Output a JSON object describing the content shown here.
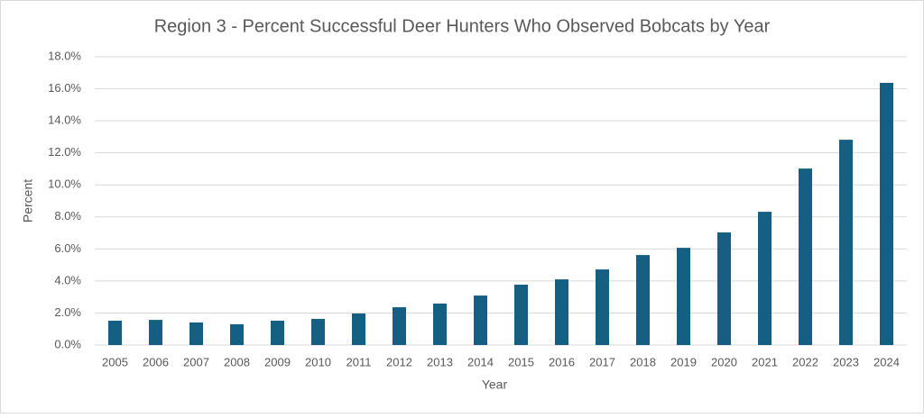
{
  "chart_data": {
    "type": "bar",
    "title": "Region 3 - Percent Successful Deer Hunters Who Observed Bobcats by Year",
    "x_label": "Year",
    "y_label": "Percent",
    "categories": [
      "2005",
      "2006",
      "2007",
      "2008",
      "2009",
      "2010",
      "2011",
      "2012",
      "2013",
      "2014",
      "2015",
      "2016",
      "2017",
      "2018",
      "2019",
      "2020",
      "2021",
      "2022",
      "2023",
      "2024"
    ],
    "values": [
      1.52,
      1.57,
      1.41,
      1.3,
      1.52,
      1.63,
      1.97,
      2.36,
      2.59,
      3.09,
      3.77,
      4.1,
      4.72,
      5.62,
      6.07,
      7.03,
      8.32,
      11.02,
      12.82,
      16.37
    ],
    "color": "#156082",
    "ylim": [
      0,
      18
    ],
    "yticks": [
      {
        "value": 0,
        "label": "0.0%"
      },
      {
        "value": 2,
        "label": "2.0%"
      },
      {
        "value": 4,
        "label": "4.0%"
      },
      {
        "value": 6,
        "label": "6.0%"
      },
      {
        "value": 8,
        "label": "8.0%"
      },
      {
        "value": 10,
        "label": "10.0%"
      },
      {
        "value": 12,
        "label": "12.0%"
      },
      {
        "value": 14,
        "label": "14.0%"
      },
      {
        "value": 16,
        "label": "16.0%"
      },
      {
        "value": 18,
        "label": "18.0%"
      }
    ],
    "grid": true
  }
}
